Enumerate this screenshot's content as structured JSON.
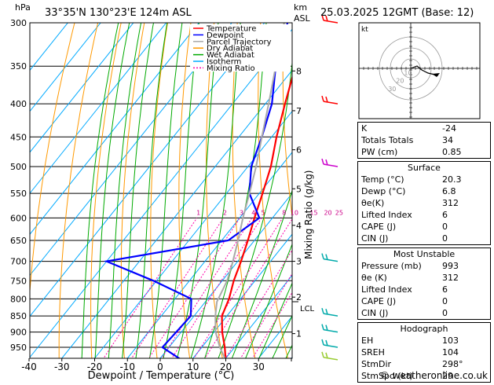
{
  "header": {
    "location": "33°35'N  130°23'E  124m  ASL",
    "datetime": "25.03.2025  12GMT  (Base: 12)",
    "pressure_unit": "hPa",
    "height_unit_top": "km",
    "height_unit_bottom": "ASL"
  },
  "chart_data": {
    "type": "line",
    "xlabel": "Dewpoint / Temperature (°C)",
    "ylabel_left": "hPa",
    "ylabel_right": "Mixing Ratio (g/kg)",
    "x_ticks": [
      -40,
      -30,
      -20,
      -10,
      0,
      10,
      20,
      30
    ],
    "xlim": [
      -40,
      40
    ],
    "pressure_ticks": [
      300,
      350,
      400,
      450,
      500,
      550,
      600,
      650,
      700,
      750,
      800,
      850,
      900,
      950
    ],
    "ylim": [
      1000,
      300
    ],
    "km_ticks": [
      {
        "km": "1",
        "p": 905
      },
      {
        "km": "2",
        "p": 795
      },
      {
        "km": "3",
        "p": 700
      },
      {
        "km": "4",
        "p": 616
      },
      {
        "km": "5",
        "p": 541
      },
      {
        "km": "6",
        "p": 471
      },
      {
        "km": "7",
        "p": 410
      },
      {
        "km": "8",
        "p": 356
      }
    ],
    "lcl": {
      "label": "LCL",
      "p": 808
    },
    "mixing_ratio_labels": [
      "1",
      "2",
      "3",
      "4",
      "5",
      "8",
      "10",
      "15",
      "20",
      "25"
    ],
    "mixing_ratio_values": [
      1,
      2,
      3,
      4,
      5,
      8,
      10,
      15,
      20,
      25
    ],
    "legend": [
      {
        "name": "Temperature",
        "color": "#ff0000"
      },
      {
        "name": "Dewpoint",
        "color": "#0000ff"
      },
      {
        "name": "Parcel Trajectory",
        "color": "#aaaaaa"
      },
      {
        "name": "Dry Adiabat",
        "color": "#ff9900"
      },
      {
        "name": "Wet Adiabat",
        "color": "#00aa00"
      },
      {
        "name": "Isotherm",
        "color": "#00aaff"
      },
      {
        "name": "Mixing Ratio",
        "color": "#ff00aa"
      }
    ],
    "series": [
      {
        "name": "Temperature",
        "color": "#ff0000",
        "points": [
          [
            20.3,
            993
          ],
          [
            17,
            950
          ],
          [
            12.5,
            900
          ],
          [
            8.5,
            850
          ],
          [
            6.5,
            800
          ],
          [
            3.5,
            750
          ],
          [
            1,
            700
          ],
          [
            -2,
            650
          ],
          [
            -5.5,
            600
          ],
          [
            -9,
            550
          ],
          [
            -13,
            500
          ],
          [
            -18.5,
            450
          ],
          [
            -24,
            400
          ],
          [
            -30,
            350
          ],
          [
            -36,
            300
          ]
        ]
      },
      {
        "name": "Dewpoint",
        "color": "#0000ff",
        "points": [
          [
            6.8,
            993
          ],
          [
            -2,
            950
          ],
          [
            -1.5,
            900
          ],
          [
            -1,
            850
          ],
          [
            -5,
            800
          ],
          [
            -21,
            750
          ],
          [
            -40,
            700
          ],
          [
            -8,
            650
          ],
          [
            -4,
            600
          ],
          [
            -13,
            550
          ],
          [
            -19,
            500
          ],
          [
            -23,
            450
          ],
          [
            -28,
            400
          ],
          [
            -36,
            350
          ],
          [
            -43,
            300
          ]
        ]
      },
      {
        "name": "Parcel Trajectory",
        "color": "#aaaaaa",
        "points": [
          [
            20.3,
            993
          ],
          [
            15.5,
            950
          ],
          [
            10.5,
            900
          ],
          [
            6.5,
            850
          ],
          [
            3.5,
            808
          ],
          [
            1.5,
            750
          ],
          [
            -1.5,
            700
          ],
          [
            -5,
            650
          ],
          [
            -9,
            600
          ],
          [
            -13,
            550
          ],
          [
            -17.5,
            500
          ],
          [
            -23,
            450
          ],
          [
            -29,
            400
          ],
          [
            -36,
            350
          ],
          [
            -44,
            300
          ]
        ]
      }
    ]
  },
  "wind_barbs": [
    {
      "p": 993,
      "color": "#99cc33"
    },
    {
      "p": 950,
      "color": "#00aaaa"
    },
    {
      "p": 900,
      "color": "#00aaaa"
    },
    {
      "p": 850,
      "color": "#00aaaa"
    },
    {
      "p": 700,
      "color": "#00aaaa"
    },
    {
      "p": 500,
      "color": "#cc00cc"
    },
    {
      "p": 400,
      "color": "#ff0000"
    },
    {
      "p": 300,
      "color": "#ff0000"
    }
  ],
  "hodograph": {
    "unit": "kt",
    "ring_labels": [
      "10",
      "20",
      "30"
    ]
  },
  "indices": {
    "basic": [
      {
        "k": "K",
        "v": "-24"
      },
      {
        "k": "Totals Totals",
        "v": "34"
      },
      {
        "k": "PW (cm)",
        "v": "0.85"
      }
    ],
    "surface_title": "Surface",
    "surface": [
      {
        "k": "Temp (°C)",
        "v": "20.3"
      },
      {
        "k": "Dewp (°C)",
        "v": "6.8"
      },
      {
        "k": "θe(K)",
        "v": "312"
      },
      {
        "k": "Lifted Index",
        "v": "6"
      },
      {
        "k": "CAPE (J)",
        "v": "0"
      },
      {
        "k": "CIN (J)",
        "v": "0"
      }
    ],
    "unstable_title": "Most Unstable",
    "unstable": [
      {
        "k": "Pressure (mb)",
        "v": "993"
      },
      {
        "k": "θe (K)",
        "v": "312"
      },
      {
        "k": "Lifted Index",
        "v": "6"
      },
      {
        "k": "CAPE (J)",
        "v": "0"
      },
      {
        "k": "CIN (J)",
        "v": "0"
      }
    ],
    "hodo_title": "Hodograph",
    "hodo": [
      {
        "k": "EH",
        "v": "103"
      },
      {
        "k": "SREH",
        "v": "104"
      },
      {
        "k": "StmDir",
        "v": "298°"
      },
      {
        "k": "StmSpd (kt)",
        "v": "29"
      }
    ]
  },
  "footer": {
    "copyright": "© weatheronline.co.uk"
  }
}
